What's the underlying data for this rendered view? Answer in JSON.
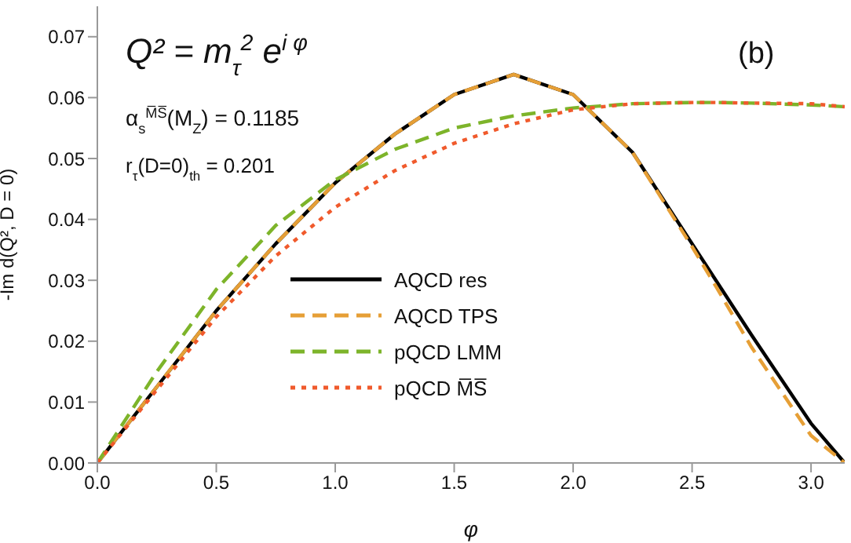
{
  "chart_data": {
    "type": "line",
    "xlabel": "φ",
    "ylabel": "-Im d(Q², D = 0)",
    "annotations": [
      "Q² = m$_{τ}$$^{2}$ e$^{i φ}$",
      "α$_{s}$$^{M̅S̅}$(M$_{Z}$) = 0.1185",
      "r$_{τ}$(D=0)$_{th}$ = 0.201",
      "(b)"
    ],
    "x": [
      0,
      0.25,
      0.5,
      0.75,
      1.0,
      1.25,
      1.5,
      1.75,
      2.0,
      2.25,
      2.5,
      2.6,
      2.75,
      3.0,
      3.14159
    ],
    "series": [
      {
        "name": "AQCD res",
        "color": "#000000",
        "line_style": "solid",
        "values": [
          0,
          0.0125,
          0.025,
          0.036,
          0.046,
          0.054,
          0.0605,
          0.0638,
          0.0605,
          0.051,
          0.036,
          0.03,
          0.021,
          0.0065,
          0
        ]
      },
      {
        "name": "AQCD TPS",
        "color": "#e69f36",
        "line_style": "dashed",
        "values": [
          0,
          0.0125,
          0.025,
          0.036,
          0.046,
          0.054,
          0.0605,
          0.0638,
          0.0605,
          0.051,
          0.0355,
          0.029,
          0.019,
          0.0045,
          0
        ]
      },
      {
        "name": "pQCD LMM",
        "color": "#7db42a",
        "line_style": "dashed",
        "values": [
          0,
          0.015,
          0.0285,
          0.039,
          0.0465,
          0.0515,
          0.055,
          0.057,
          0.0583,
          0.059,
          0.0592,
          0.0592,
          0.0591,
          0.0588,
          0.0585
        ]
      },
      {
        "name": "pQCD M̅S̅",
        "color": "#f05a2c",
        "line_style": "dotted",
        "values": [
          0,
          0.012,
          0.024,
          0.034,
          0.042,
          0.048,
          0.0525,
          0.0557,
          0.058,
          0.059,
          0.0592,
          0.0592,
          0.0591,
          0.059,
          0.0585
        ]
      }
    ],
    "xlim": [
      0,
      3.14159
    ],
    "xticks": [
      {
        "value": 0,
        "label": "0.0"
      },
      0.5,
      {
        "value": 1,
        "label": "1.0"
      },
      1.5,
      {
        "value": 2,
        "label": "2.0"
      },
      2.5,
      {
        "value": 3,
        "label": "3.0"
      }
    ],
    "ylim": [
      0,
      0.075
    ],
    "yticks": [
      {
        "value": 0,
        "label": "0.00"
      },
      0.01,
      0.02,
      0.03,
      0.04,
      0.05,
      0.06,
      0.07
    ],
    "legend": "bottom",
    "grid": false
  }
}
